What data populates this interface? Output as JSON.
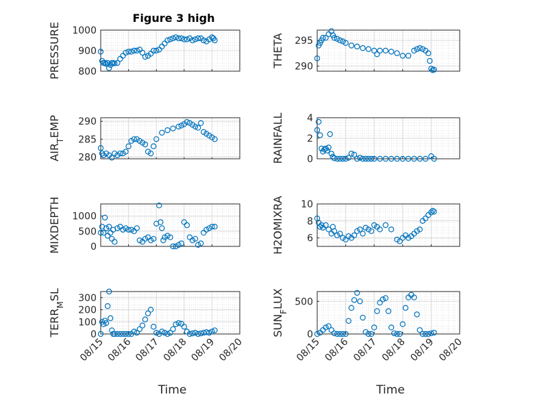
{
  "colors": {
    "marker": "#0072BD",
    "axis": "#262626",
    "grid": "#d9d9d9"
  },
  "chart_data": [
    {
      "type": "scatter",
      "title": "Figure 3 high",
      "ylabel": "PRESSURE",
      "ylim": [
        800,
        1000
      ],
      "yticks": [
        "800",
        "900",
        "1000"
      ],
      "xlim": [
        0,
        5
      ],
      "grid": true,
      "x": [
        0.0,
        0.05,
        0.1,
        0.15,
        0.2,
        0.25,
        0.3,
        0.35,
        0.4,
        0.45,
        0.5,
        0.6,
        0.7,
        0.8,
        0.9,
        1.0,
        1.1,
        1.2,
        1.3,
        1.4,
        1.5,
        1.6,
        1.7,
        1.8,
        1.9,
        2.0,
        2.1,
        2.2,
        2.3,
        2.4,
        2.5,
        2.6,
        2.7,
        2.8,
        2.9,
        3.0,
        3.1,
        3.2,
        3.3,
        3.4,
        3.5,
        3.6,
        3.7,
        3.8,
        3.9,
        4.0,
        4.05,
        4.1
      ],
      "y": [
        895,
        850,
        840,
        840,
        835,
        840,
        815,
        830,
        840,
        840,
        838,
        840,
        860,
        875,
        890,
        895,
        895,
        900,
        900,
        905,
        890,
        870,
        875,
        885,
        900,
        900,
        905,
        920,
        935,
        950,
        955,
        960,
        965,
        960,
        960,
        955,
        955,
        960,
        950,
        955,
        960,
        960,
        950,
        945,
        955,
        965,
        960,
        950
      ]
    },
    {
      "type": "scatter",
      "title": "",
      "ylabel": "THETA",
      "ylim": [
        289,
        297
      ],
      "yticks": [
        "290",
        "295"
      ],
      "xlim": [
        0,
        5
      ],
      "grid": true,
      "x": [
        0.0,
        0.05,
        0.1,
        0.15,
        0.2,
        0.3,
        0.4,
        0.5,
        0.55,
        0.6,
        0.7,
        0.8,
        0.9,
        1.0,
        1.2,
        1.4,
        1.6,
        1.8,
        2.0,
        2.1,
        2.2,
        2.4,
        2.6,
        2.8,
        3.0,
        3.2,
        3.4,
        3.5,
        3.6,
        3.7,
        3.8,
        3.9,
        3.95,
        4.0,
        4.05,
        4.1
      ],
      "y": [
        291.5,
        294,
        294.5,
        295,
        295.5,
        295.5,
        296.2,
        296.8,
        296,
        295.5,
        295.3,
        295,
        294.8,
        294.5,
        294,
        293.8,
        293.5,
        293.3,
        293,
        292.3,
        293,
        293,
        292.8,
        292.5,
        292,
        292,
        293,
        293.3,
        293.5,
        293.3,
        293,
        292.5,
        291,
        289.5,
        289.2,
        289.3
      ]
    },
    {
      "type": "scatter",
      "title": "",
      "ylabel": "AIR_TEMP",
      "ylabel_main": "AIR",
      "ylabel_sub": "T",
      "ylabel_rest": "EMP",
      "ylim": [
        279.5,
        291
      ],
      "yticks": [
        "280",
        "285",
        "290"
      ],
      "xlim": [
        0,
        5
      ],
      "grid": true,
      "x": [
        0.0,
        0.05,
        0.1,
        0.2,
        0.3,
        0.4,
        0.5,
        0.6,
        0.7,
        0.8,
        0.9,
        1.0,
        1.1,
        1.2,
        1.3,
        1.4,
        1.5,
        1.6,
        1.7,
        1.8,
        1.9,
        2.0,
        2.2,
        2.4,
        2.6,
        2.8,
        2.9,
        3.0,
        3.1,
        3.2,
        3.3,
        3.4,
        3.5,
        3.6,
        3.7,
        3.8,
        3.9,
        4.0,
        4.1
      ],
      "y": [
        282.5,
        281,
        280.5,
        281,
        280.5,
        279.8,
        281,
        280.5,
        281,
        281,
        281.5,
        283,
        284.5,
        285,
        285,
        284.5,
        284,
        283.5,
        281.5,
        281,
        283,
        285,
        286.8,
        287.5,
        288,
        288.5,
        288.8,
        289.2,
        289.8,
        289.5,
        289,
        288.5,
        288.2,
        289.5,
        287,
        286.5,
        286,
        285.5,
        285
      ]
    },
    {
      "type": "scatter",
      "title": "",
      "ylabel": "RAINFALL",
      "ylim": [
        0,
        4
      ],
      "yticks": [
        "0",
        "2",
        "4"
      ],
      "xlim": [
        0,
        5
      ],
      "grid": true,
      "x": [
        0.0,
        0.05,
        0.1,
        0.15,
        0.2,
        0.25,
        0.3,
        0.35,
        0.4,
        0.45,
        0.5,
        0.55,
        0.6,
        0.7,
        0.8,
        0.9,
        1.0,
        1.1,
        1.2,
        1.3,
        1.4,
        1.5,
        1.6,
        1.7,
        1.8,
        1.9,
        2.0,
        2.2,
        2.4,
        2.6,
        2.8,
        3.0,
        3.2,
        3.4,
        3.6,
        3.8,
        4.0,
        4.1
      ],
      "y": [
        2.8,
        3.6,
        2.3,
        1.0,
        0.7,
        0.9,
        1.0,
        0.8,
        1.1,
        2.4,
        0.5,
        0.2,
        0.05,
        0,
        0,
        0,
        0,
        0.1,
        0.5,
        0.4,
        0,
        0.1,
        0,
        0,
        0,
        0,
        0,
        0,
        0,
        0,
        0,
        0,
        0,
        0,
        0,
        0,
        0.25,
        0
      ]
    },
    {
      "type": "scatter",
      "title": "",
      "ylabel": "MIXDEPTH",
      "ylim": [
        0,
        1400
      ],
      "yticks": [
        "0",
        "500",
        "1000"
      ],
      "xlim": [
        0,
        5
      ],
      "grid": true,
      "x": [
        0.0,
        0.05,
        0.1,
        0.15,
        0.2,
        0.25,
        0.3,
        0.35,
        0.4,
        0.45,
        0.5,
        0.6,
        0.7,
        0.8,
        0.9,
        1.0,
        1.1,
        1.2,
        1.3,
        1.4,
        1.5,
        1.6,
        1.7,
        1.8,
        1.9,
        2.0,
        2.1,
        2.15,
        2.2,
        2.25,
        2.3,
        2.4,
        2.5,
        2.6,
        2.7,
        2.8,
        2.9,
        3.0,
        3.1,
        3.2,
        3.3,
        3.4,
        3.5,
        3.6,
        3.7,
        3.8,
        3.9,
        4.0,
        4.1
      ],
      "y": [
        450,
        650,
        450,
        950,
        600,
        350,
        650,
        450,
        250,
        550,
        150,
        600,
        650,
        550,
        600,
        550,
        550,
        500,
        600,
        200,
        150,
        250,
        300,
        200,
        250,
        750,
        1350,
        800,
        600,
        200,
        300,
        350,
        300,
        0,
        0,
        50,
        100,
        800,
        700,
        300,
        200,
        250,
        50,
        100,
        450,
        550,
        600,
        650,
        650
      ]
    },
    {
      "type": "scatter",
      "title": "",
      "ylabel": "H2OMIXRA",
      "ylim": [
        5,
        10
      ],
      "yticks": [
        "6",
        "8",
        "10"
      ],
      "xlim": [
        0,
        5
      ],
      "grid": true,
      "x": [
        0.0,
        0.05,
        0.1,
        0.15,
        0.2,
        0.3,
        0.4,
        0.5,
        0.55,
        0.6,
        0.7,
        0.8,
        0.9,
        1.0,
        1.1,
        1.2,
        1.3,
        1.4,
        1.5,
        1.6,
        1.7,
        1.8,
        1.9,
        2.0,
        2.1,
        2.2,
        2.4,
        2.6,
        2.8,
        2.9,
        3.0,
        3.1,
        3.2,
        3.3,
        3.4,
        3.5,
        3.6,
        3.7,
        3.8,
        3.9,
        4.0,
        4.05,
        4.1
      ],
      "y": [
        8.3,
        7.8,
        7.3,
        7.5,
        7.2,
        7.5,
        7.0,
        6.5,
        7.3,
        6.8,
        6.3,
        6.5,
        6.0,
        5.8,
        6.2,
        6.0,
        6.3,
        6.8,
        7.0,
        6.5,
        7.2,
        7.0,
        6.8,
        7.5,
        7.3,
        7.0,
        7.5,
        7.0,
        5.8,
        5.6,
        6.0,
        6.3,
        6.0,
        6.2,
        6.5,
        6.8,
        7.0,
        8.0,
        8.3,
        8.7,
        9.0,
        9.2,
        9.1
      ]
    },
    {
      "type": "scatter",
      "title": "",
      "ylabel": "TERR_MSL",
      "ylabel_main": "TERR",
      "ylabel_sub": "M",
      "ylabel_rest": "SL",
      "ylim": [
        0,
        350
      ],
      "yticks": [
        "0",
        "100",
        "200",
        "300"
      ],
      "xlim": [
        0,
        5
      ],
      "grid": true,
      "x": [
        0.0,
        0.05,
        0.1,
        0.15,
        0.2,
        0.25,
        0.3,
        0.35,
        0.4,
        0.45,
        0.5,
        0.6,
        0.7,
        0.8,
        0.9,
        1.0,
        1.1,
        1.2,
        1.3,
        1.4,
        1.5,
        1.6,
        1.7,
        1.8,
        1.9,
        2.0,
        2.1,
        2.2,
        2.3,
        2.4,
        2.5,
        2.6,
        2.7,
        2.8,
        2.9,
        3.0,
        3.1,
        3.2,
        3.3,
        3.4,
        3.5,
        3.6,
        3.7,
        3.8,
        3.9,
        4.0,
        4.1
      ],
      "y": [
        0,
        100,
        80,
        110,
        90,
        230,
        350,
        130,
        30,
        0,
        0,
        0,
        0,
        0,
        0,
        0,
        0,
        20,
        10,
        40,
        70,
        120,
        170,
        200,
        60,
        10,
        0,
        20,
        10,
        0,
        10,
        40,
        80,
        90,
        85,
        60,
        20,
        0,
        5,
        10,
        0,
        5,
        10,
        15,
        10,
        20,
        30
      ]
    },
    {
      "type": "scatter",
      "title": "",
      "ylabel": "SUN_FLUX",
      "ylabel_main": "SUN",
      "ylabel_sub": "F",
      "ylabel_rest": "LUX",
      "ylim": [
        0,
        650
      ],
      "yticks": [
        "0",
        "500"
      ],
      "xlim": [
        0,
        5
      ],
      "grid": true,
      "x": [
        0.0,
        0.1,
        0.2,
        0.3,
        0.4,
        0.5,
        0.6,
        0.7,
        0.8,
        0.9,
        1.0,
        1.1,
        1.2,
        1.3,
        1.4,
        1.5,
        1.6,
        1.7,
        1.8,
        1.9,
        2.0,
        2.1,
        2.2,
        2.3,
        2.4,
        2.5,
        2.6,
        2.7,
        2.8,
        2.9,
        3.0,
        3.1,
        3.2,
        3.3,
        3.4,
        3.5,
        3.6,
        3.7,
        3.8,
        3.9,
        4.0,
        4.1
      ],
      "y": [
        0,
        20,
        60,
        100,
        120,
        60,
        10,
        0,
        0,
        0,
        0,
        200,
        400,
        520,
        630,
        500,
        250,
        30,
        0,
        0,
        100,
        350,
        480,
        530,
        550,
        350,
        100,
        10,
        0,
        0,
        150,
        400,
        560,
        600,
        560,
        300,
        60,
        0,
        0,
        0,
        10,
        20
      ]
    }
  ],
  "shared_x": {
    "label": "Time",
    "ticks": [
      "08/15",
      "08/16",
      "08/17",
      "08/18",
      "08/19",
      "08/20"
    ]
  }
}
